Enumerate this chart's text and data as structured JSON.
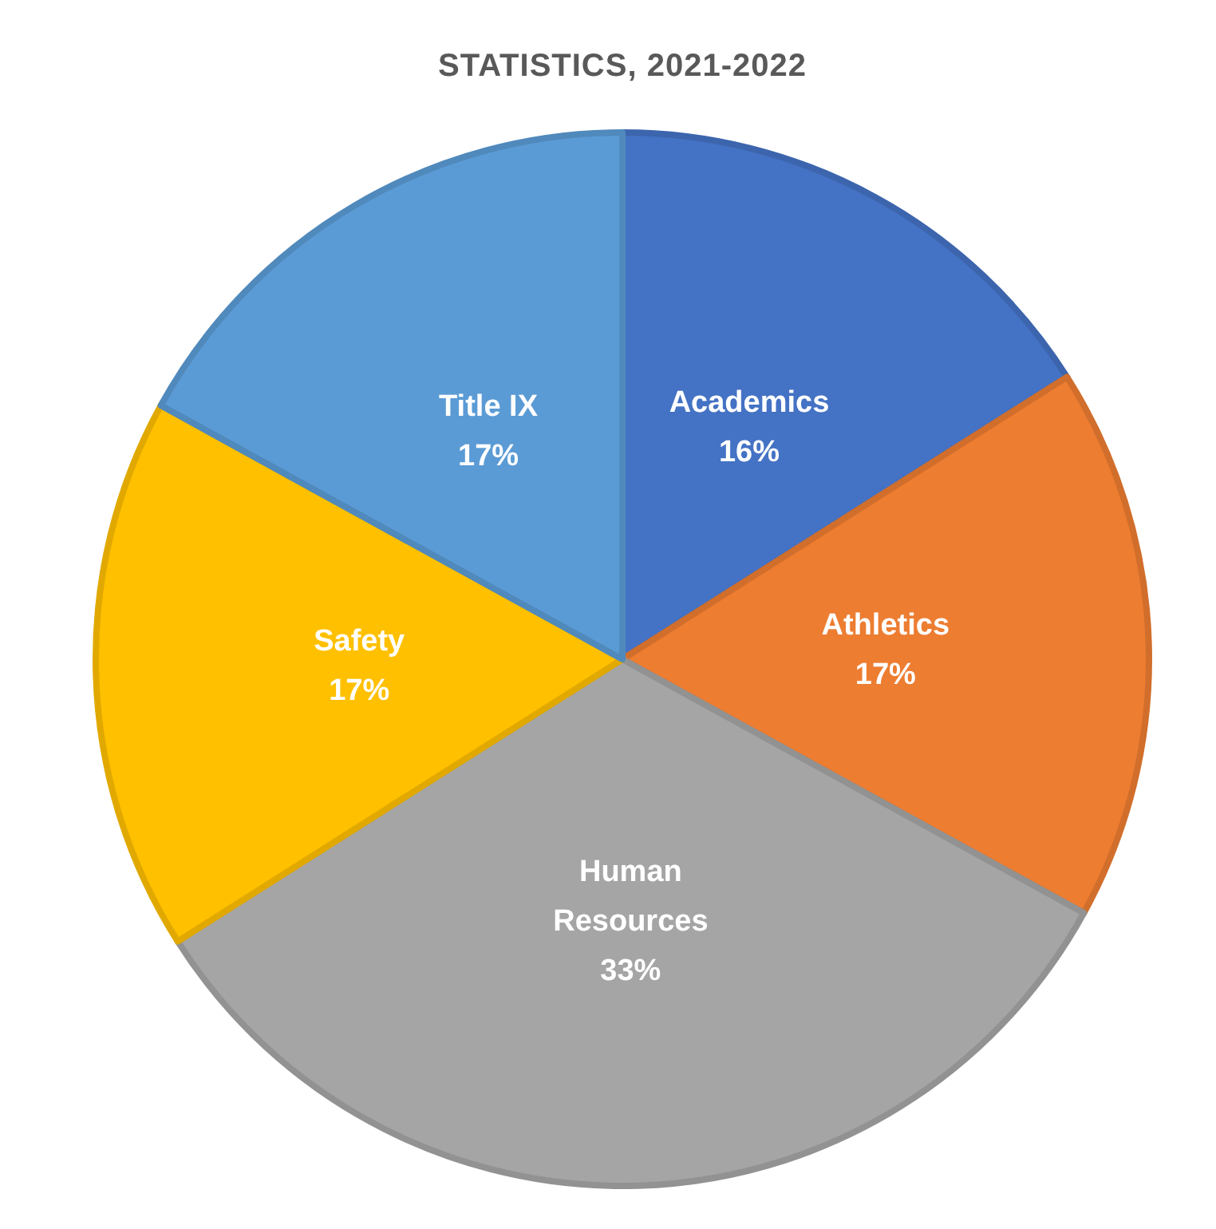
{
  "chart_data": {
    "type": "pie",
    "title": "STATISTICS, 2021-2022",
    "categories": [
      "Academics",
      "Athletics",
      "Human Resources",
      "Safety",
      "Title IX"
    ],
    "values": [
      16,
      17,
      33,
      17,
      17
    ],
    "value_labels": [
      "16%",
      "17%",
      "33%",
      "17%",
      "17%"
    ],
    "colors": [
      "#4472c4",
      "#ed7d31",
      "#a5a5a5",
      "#ffc000",
      "#5b9bd5"
    ]
  }
}
